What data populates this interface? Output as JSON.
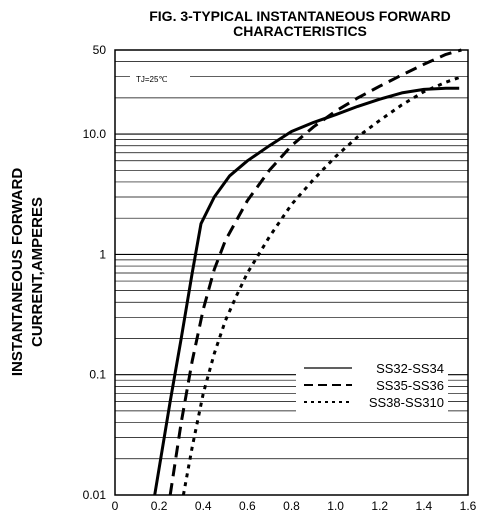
{
  "chart_data": {
    "type": "line",
    "title_lines": [
      "FIG. 3-TYPICAL INSTANTANEOUS FORWARD",
      "CHARACTERISTICS"
    ],
    "ylabel_lines": [
      "INSTANTANEOUS FORWARD",
      "CURRENT,AMPERES"
    ],
    "xlabel": "",
    "annotation": "TJ=25℃",
    "x_ticks": [
      0,
      0.2,
      0.4,
      0.6,
      0.8,
      1.0,
      1.2,
      1.4,
      1.6
    ],
    "x_tick_labels": [
      "0",
      "0.2",
      "0.4",
      "0.6",
      "0.8",
      "1.0",
      "1.2",
      "1.4",
      "1.6"
    ],
    "y_ticks": [
      0.01,
      0.1,
      1,
      10,
      50
    ],
    "y_tick_labels": [
      "0.01",
      "0.1",
      "1",
      "10.0",
      "50"
    ],
    "xlim": [
      0,
      1.6
    ],
    "ylim": [
      0.01,
      50
    ],
    "y_scale": "log",
    "grid": "horizontal minor decades",
    "legend_position": "lower-right",
    "series": [
      {
        "name": "SS32-SS34",
        "style": "solid",
        "x": [
          0.18,
          0.25,
          0.3,
          0.35,
          0.39,
          0.45,
          0.52,
          0.6,
          0.7,
          0.8,
          0.9,
          1.0,
          1.1,
          1.2,
          1.3,
          1.4,
          1.5,
          1.56
        ],
        "y": [
          0.01,
          0.06,
          0.2,
          0.7,
          1.8,
          3.0,
          4.5,
          6.0,
          8.0,
          10.5,
          12.5,
          14.5,
          17.0,
          19.5,
          22.0,
          23.5,
          24.0,
          24.0
        ]
      },
      {
        "name": "SS35-SS36",
        "style": "dashed",
        "x": [
          0.25,
          0.3,
          0.35,
          0.4,
          0.45,
          0.5,
          0.6,
          0.7,
          0.8,
          0.9,
          1.0,
          1.1,
          1.2,
          1.3,
          1.4,
          1.5,
          1.57
        ],
        "y": [
          0.01,
          0.04,
          0.13,
          0.35,
          0.75,
          1.3,
          2.8,
          5.0,
          8.0,
          11.5,
          15.5,
          20.0,
          25.0,
          31.0,
          38.0,
          46.0,
          50.0
        ]
      },
      {
        "name": "SS38-SS310",
        "style": "dotted",
        "x": [
          0.31,
          0.35,
          0.4,
          0.45,
          0.5,
          0.55,
          0.6,
          0.7,
          0.8,
          0.9,
          1.0,
          1.1,
          1.2,
          1.3,
          1.4,
          1.5,
          1.57
        ],
        "y": [
          0.01,
          0.025,
          0.07,
          0.15,
          0.28,
          0.45,
          0.7,
          1.4,
          2.6,
          4.2,
          6.5,
          9.5,
          13.0,
          17.5,
          22.5,
          27.0,
          30.0
        ]
      }
    ]
  }
}
